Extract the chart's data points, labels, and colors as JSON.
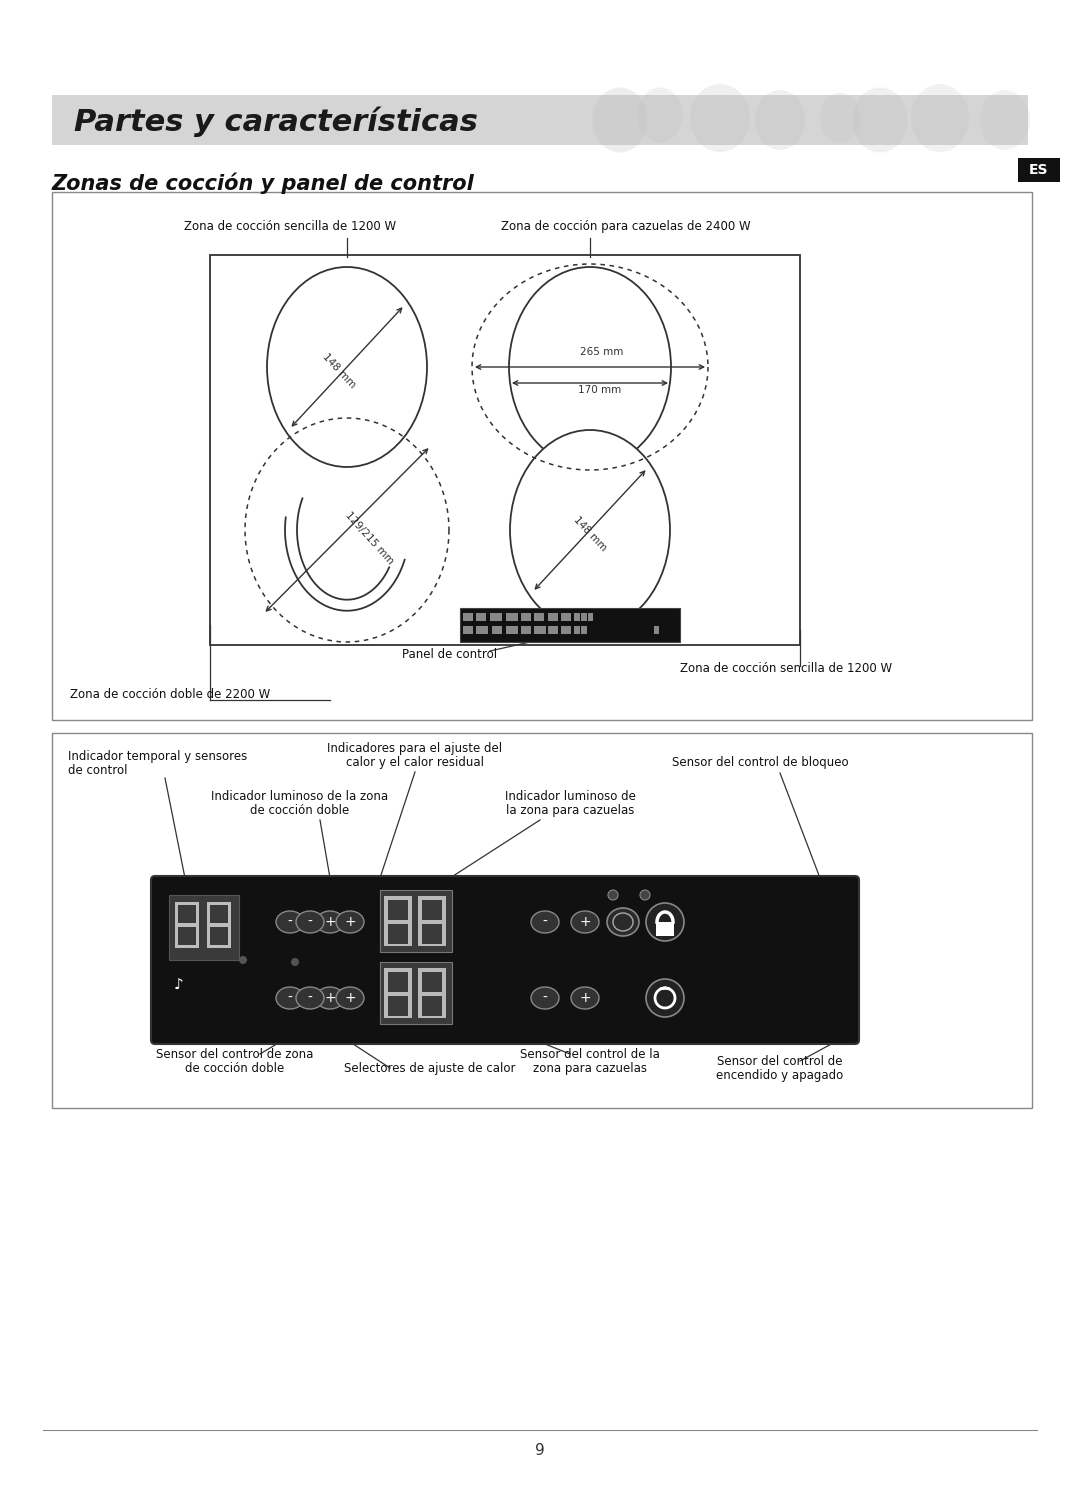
{
  "bg_color": "#ffffff",
  "header_bg": "#d4d4d4",
  "header_text": "Partes y características",
  "section_title": "Zonas de cocción y panel de control",
  "es_badge": "ES",
  "page_number": "9",
  "box1_labels": {
    "top_left": "Zona de cocción sencilla de 1200 W",
    "top_right": "Zona de cocción para cazuelas de 2400 W",
    "bottom_left": "Zona de cocción doble de 2200 W",
    "panel": "Panel de control",
    "bottom_right": "Zona de cocción sencilla de 1200 W"
  },
  "box2_labels": {
    "top_left1": "Indicador temporal y sensores",
    "top_left2": "de control",
    "top_mid1": "Indicadores para el ajuste del",
    "top_mid2": "calor y el calor residual",
    "top_right": "Sensor del control de bloqueo",
    "mid_left1": "Indicador luminoso de la zona",
    "mid_left2": "de cocción doble",
    "mid_right1": "Indicador luminoso de",
    "mid_right2": "la zona para cazuelas",
    "bot_left1": "Sensor del control de zona",
    "bot_left2": "de cocción doble",
    "bot_mid1": "Selectores de ajuste de calor",
    "bot_right1": "Sensor del control de la",
    "bot_right2": "zona para cazuelas",
    "bot_far_right1": "Sensor del control de",
    "bot_far_right2": "encendido y apagado"
  }
}
